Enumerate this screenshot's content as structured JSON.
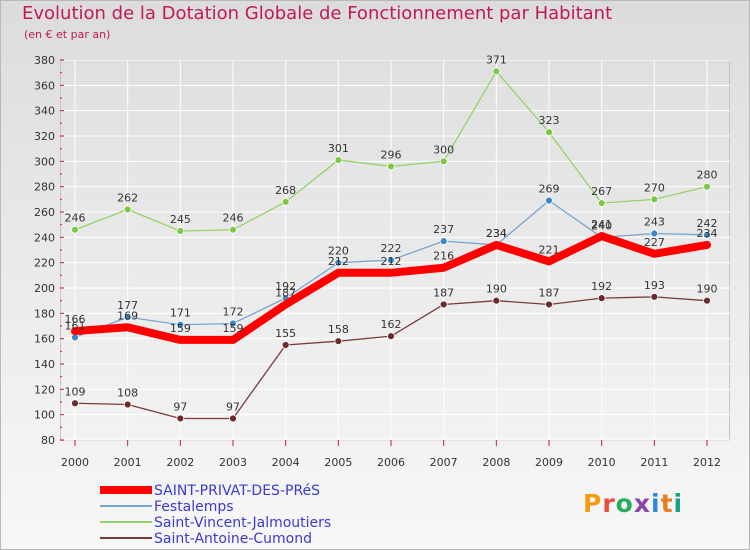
{
  "page": {
    "title": "Evolution de la Dotation Globale de Fonctionnement par Habitant",
    "subtitle": "(en € et par an)",
    "brand": "Proxiti"
  },
  "chart_data": {
    "type": "line",
    "title": "Evolution de la Dotation Globale de Fonctionnement par Habitant",
    "subtitle": "(en € et par an)",
    "xlabel": "",
    "ylabel": "",
    "x": [
      "2000",
      "2001",
      "2002",
      "2003",
      "2004",
      "2005",
      "2006",
      "2007",
      "2008",
      "2009",
      "2010",
      "2011",
      "2012"
    ],
    "ylim": [
      80,
      380
    ],
    "yticks": [
      80,
      100,
      120,
      140,
      160,
      180,
      200,
      220,
      240,
      260,
      280,
      300,
      320,
      340,
      360,
      380
    ],
    "grid": true,
    "legend_position": "bottom-left",
    "series": [
      {
        "name": "SAINT-PRIVAT-DES-PRéS",
        "color": "#ff0000",
        "width": 8,
        "marker": false,
        "values": [
          166,
          169,
          159,
          159,
          187,
          212,
          212,
          216,
          234,
          221,
          241,
          227,
          234
        ],
        "labels": [
          "166",
          "169",
          "159",
          "159",
          "187",
          "212",
          "212",
          "216",
          "234",
          "221",
          "241",
          "227",
          "234"
        ]
      },
      {
        "name": "Festalemps",
        "color": "#7aa5cf",
        "width": 1.3,
        "marker": true,
        "marker_color": "#3d86c6",
        "values": [
          161,
          177,
          171,
          172,
          192,
          220,
          222,
          237,
          234,
          269,
          240,
          243,
          242
        ],
        "labels": [
          "161",
          "177",
          "171",
          "172",
          "192",
          "220",
          "222",
          "237",
          "234",
          "269",
          "240",
          "243",
          "242"
        ]
      },
      {
        "name": "Saint-Vincent-Jalmoutiers",
        "color": "#95d26a",
        "width": 1.3,
        "marker": true,
        "marker_color": "#7cc843",
        "values": [
          246,
          262,
          245,
          246,
          268,
          301,
          296,
          300,
          371,
          323,
          267,
          270,
          280
        ],
        "labels": [
          "246",
          "262",
          "245",
          "246",
          "268",
          "301",
          "296",
          "300",
          "371",
          "323",
          "267",
          "270",
          "280"
        ]
      },
      {
        "name": "Saint-Antoine-Cumond",
        "color": "#7a3b3b",
        "width": 1.3,
        "marker": true,
        "marker_color": "#6b2a2a",
        "values": [
          109,
          108,
          97,
          97,
          155,
          158,
          162,
          187,
          190,
          187,
          192,
          193,
          190
        ],
        "labels": [
          "109",
          "108",
          "97",
          "97",
          "155",
          "158",
          "162",
          "187",
          "190",
          "187",
          "192",
          "193",
          "190"
        ]
      }
    ]
  }
}
